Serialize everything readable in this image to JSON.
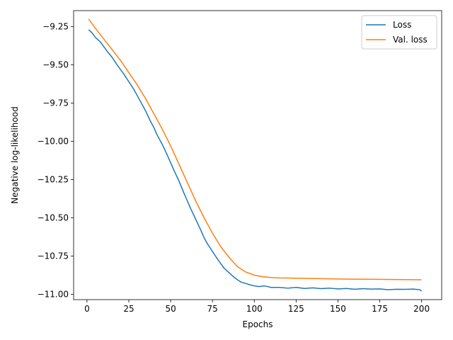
{
  "chart_data": {
    "type": "line",
    "xlabel": "Epochs",
    "ylabel": "Negative log-likelihood",
    "xlim": [
      -8,
      212
    ],
    "ylim": [
      -11.035,
      -9.145
    ],
    "xticks": [
      0,
      25,
      50,
      75,
      100,
      125,
      150,
      175,
      200
    ],
    "xtick_labels": [
      "0",
      "25",
      "50",
      "75",
      "100",
      "125",
      "150",
      "175",
      "200"
    ],
    "yticks": [
      -9.25,
      -9.5,
      -9.75,
      -10.0,
      -10.25,
      -10.5,
      -10.75,
      -11.0
    ],
    "ytick_labels": [
      "−9.25",
      "−9.50",
      "−9.75",
      "−10.00",
      "−10.25",
      "−10.50",
      "−10.75",
      "−11.00"
    ],
    "grid": false,
    "legend_position": "top-right",
    "series": [
      {
        "name": "Loss",
        "color": "#1f77b4",
        "x": [
          1,
          3,
          5,
          8,
          10,
          12,
          15,
          18,
          20,
          22,
          25,
          28,
          30,
          32,
          35,
          38,
          40,
          42,
          45,
          48,
          50,
          52,
          55,
          58,
          60,
          62,
          65,
          68,
          70,
          72,
          75,
          78,
          80,
          82,
          85,
          88,
          90,
          92,
          95,
          98,
          100,
          103,
          106,
          110,
          115,
          120,
          125,
          130,
          135,
          140,
          145,
          150,
          155,
          160,
          165,
          170,
          175,
          180,
          185,
          190,
          195,
          199,
          200
        ],
        "values": [
          -9.27,
          -9.29,
          -9.32,
          -9.35,
          -9.38,
          -9.41,
          -9.45,
          -9.5,
          -9.53,
          -9.56,
          -9.61,
          -9.66,
          -9.7,
          -9.74,
          -9.8,
          -9.87,
          -9.91,
          -9.96,
          -10.02,
          -10.09,
          -10.14,
          -10.19,
          -10.26,
          -10.34,
          -10.39,
          -10.44,
          -10.51,
          -10.58,
          -10.63,
          -10.67,
          -10.72,
          -10.77,
          -10.8,
          -10.83,
          -10.86,
          -10.89,
          -10.905,
          -10.92,
          -10.93,
          -10.94,
          -10.945,
          -10.95,
          -10.945,
          -10.955,
          -10.955,
          -10.96,
          -10.955,
          -10.962,
          -10.958,
          -10.963,
          -10.96,
          -10.965,
          -10.962,
          -10.967,
          -10.963,
          -10.966,
          -10.965,
          -10.97,
          -10.967,
          -10.968,
          -10.966,
          -10.97,
          -10.98
        ]
      },
      {
        "name": "Val. loss",
        "color": "#ff7f0e",
        "x": [
          1,
          5,
          10,
          15,
          20,
          25,
          30,
          35,
          40,
          45,
          50,
          55,
          60,
          65,
          70,
          75,
          80,
          85,
          90,
          95,
          100,
          105,
          110,
          115,
          120,
          125,
          130,
          140,
          150,
          160,
          170,
          180,
          190,
          200
        ],
        "values": [
          -9.2,
          -9.26,
          -9.33,
          -9.4,
          -9.47,
          -9.55,
          -9.63,
          -9.72,
          -9.82,
          -9.92,
          -10.03,
          -10.15,
          -10.27,
          -10.39,
          -10.5,
          -10.6,
          -10.69,
          -10.76,
          -10.82,
          -10.855,
          -10.875,
          -10.885,
          -10.89,
          -10.893,
          -10.894,
          -10.895,
          -10.896,
          -10.898,
          -10.9,
          -10.901,
          -10.902,
          -10.903,
          -10.904,
          -10.905
        ]
      }
    ]
  }
}
